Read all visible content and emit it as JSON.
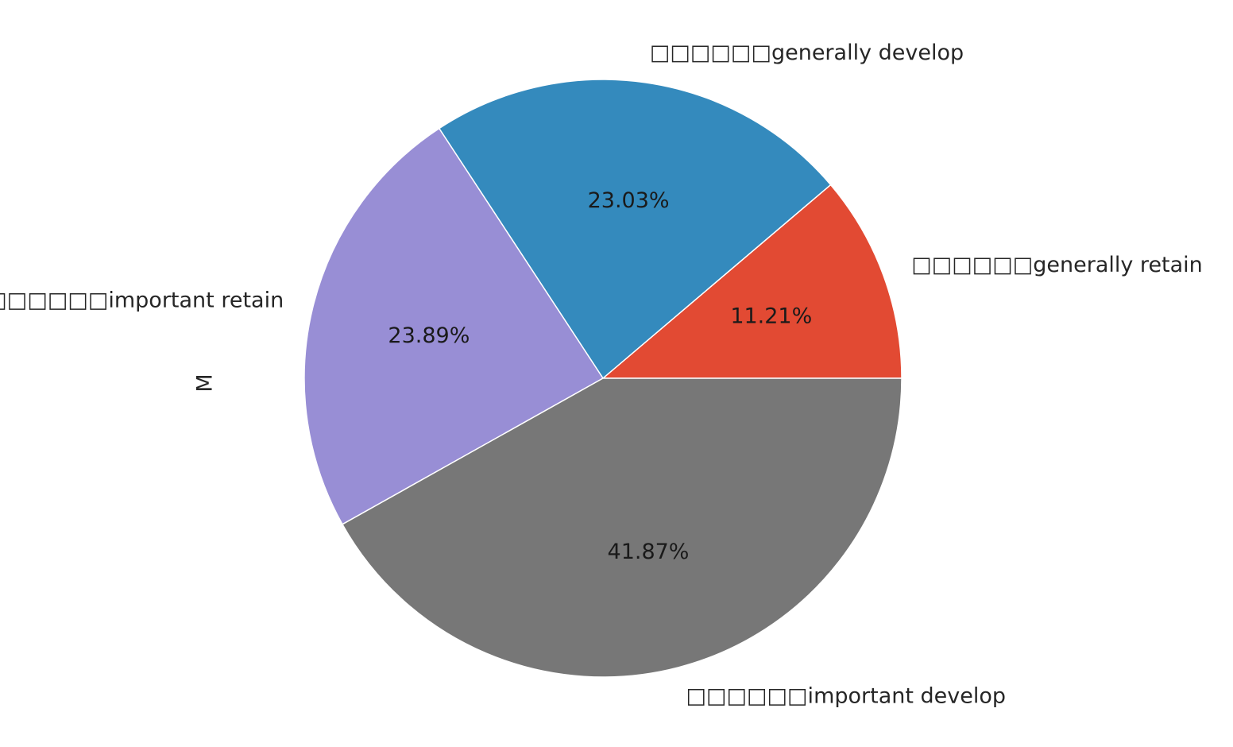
{
  "chart_data": {
    "type": "pie",
    "ylabel": "M",
    "start_angle_deg": 0,
    "direction": "counterclockwise",
    "slices": [
      {
        "label": "□□□□□□generally retain",
        "percent_label": "11.21%",
        "value": 11.21,
        "color": "#e24a33"
      },
      {
        "label": "□□□□□□generally develop",
        "percent_label": "23.03%",
        "value": 23.03,
        "color": "#348abd"
      },
      {
        "label": "□□□□□□important retain",
        "percent_label": "23.89%",
        "value": 23.89,
        "color": "#988ed5"
      },
      {
        "label": "□□□□□□important develop",
        "percent_label": "41.87%",
        "value": 41.87,
        "color": "#777777"
      }
    ]
  }
}
